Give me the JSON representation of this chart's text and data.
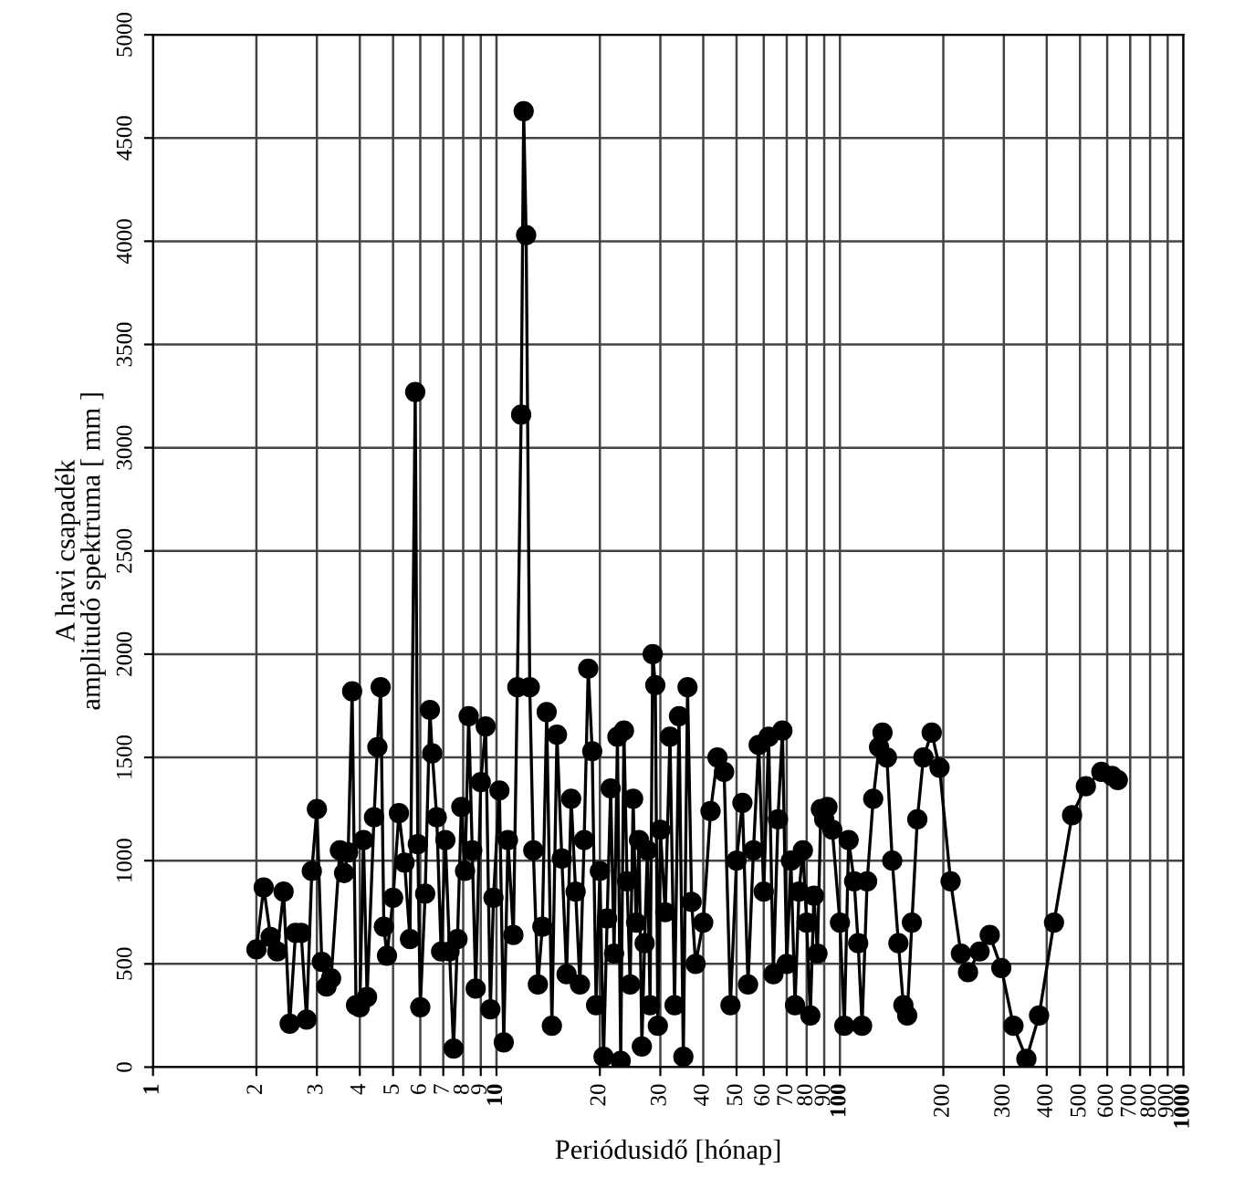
{
  "chart_data": {
    "type": "line",
    "xlabel": "Periódusidő [hónap]",
    "ylabel": "A havi csapadék\namplitudó spektruma [ mm ]",
    "log": "x",
    "grid": true,
    "marker": "circle",
    "line_style": "solid",
    "xlim": [
      1,
      1000
    ],
    "ylim": [
      0,
      5000
    ],
    "xticks": [
      1,
      2,
      3,
      4,
      5,
      6,
      7,
      8,
      9,
      10,
      20,
      30,
      40,
      50,
      60,
      70,
      80,
      90,
      100,
      200,
      300,
      400,
      500,
      600,
      700,
      800,
      900,
      1000
    ],
    "yticks": [
      0,
      500,
      1000,
      1500,
      2000,
      2500,
      3000,
      3500,
      4000,
      4500,
      5000
    ],
    "series": [
      {
        "color": "#000000",
        "x": [
          2.0,
          2.1,
          2.2,
          2.3,
          2.4,
          2.5,
          2.6,
          2.7,
          2.8,
          2.9,
          3.0,
          3.1,
          3.2,
          3.3,
          3.5,
          3.6,
          3.7,
          3.8,
          3.9,
          4.0,
          4.1,
          4.2,
          4.4,
          4.5,
          4.6,
          4.7,
          4.8,
          5.0,
          5.2,
          5.4,
          5.6,
          5.8,
          5.9,
          6.0,
          6.2,
          6.4,
          6.5,
          6.7,
          6.9,
          7.1,
          7.3,
          7.5,
          7.7,
          7.9,
          8.1,
          8.3,
          8.5,
          8.7,
          9.0,
          9.3,
          9.6,
          9.8,
          10.2,
          10.5,
          10.8,
          11.2,
          11.5,
          11.8,
          12.0,
          12.2,
          12.5,
          12.8,
          13.2,
          13.6,
          14,
          14.5,
          15,
          15.5,
          16,
          16.5,
          17,
          17.5,
          18,
          18.5,
          19,
          19.5,
          20,
          20.5,
          21,
          21.5,
          22,
          22.5,
          23,
          23.5,
          24,
          24.5,
          25,
          25.5,
          26,
          26.5,
          27,
          27.5,
          28,
          28.5,
          29,
          29.5,
          30,
          31,
          32,
          33,
          34,
          35,
          36,
          37,
          38,
          40,
          42,
          44,
          46,
          48,
          50,
          52,
          54,
          56,
          58,
          60,
          62,
          64,
          66,
          68,
          70,
          72,
          74,
          76,
          78,
          80,
          82,
          84,
          86,
          88,
          90,
          92,
          95,
          100,
          103,
          106,
          110,
          113,
          116,
          120,
          125,
          130,
          133,
          137,
          142,
          148,
          153,
          157,
          162,
          168,
          175,
          185,
          195,
          210,
          225,
          236,
          255,
          273,
          295,
          320,
          349,
          380,
          420,
          474,
          520,
          577,
          620,
          644
        ],
        "values": [
          570,
          870,
          630,
          560,
          850,
          210,
          650,
          650,
          230,
          950,
          1250,
          510,
          390,
          430,
          1050,
          940,
          1040,
          1820,
          300,
          290,
          1100,
          340,
          1210,
          1550,
          1840,
          680,
          540,
          820,
          1230,
          990,
          620,
          3270,
          1080,
          290,
          840,
          1730,
          1520,
          1210,
          560,
          1100,
          560,
          90,
          620,
          1260,
          950,
          1700,
          1050,
          380,
          1380,
          1650,
          280,
          820,
          1340,
          120,
          1100,
          640,
          1840,
          3160,
          4630,
          4030,
          1840,
          1050,
          400,
          680,
          1720,
          200,
          1610,
          1010,
          450,
          1300,
          850,
          400,
          1100,
          1930,
          1530,
          300,
          950,
          50,
          720,
          1350,
          550,
          1600,
          30,
          1630,
          900,
          400,
          1300,
          700,
          1100,
          100,
          600,
          1050,
          300,
          2000,
          1850,
          200,
          1150,
          750,
          1600,
          300,
          1700,
          50,
          1840,
          800,
          500,
          700,
          1240,
          1500,
          1430,
          300,
          1000,
          1280,
          400,
          1050,
          1560,
          850,
          1600,
          450,
          1200,
          1630,
          500,
          1000,
          300,
          850,
          1050,
          700,
          250,
          830,
          550,
          1250,
          1200,
          1260,
          1150,
          700,
          200,
          1100,
          900,
          600,
          200,
          900,
          1300,
          1550,
          1620,
          1500,
          1000,
          600,
          300,
          250,
          700,
          1200,
          1500,
          1620,
          1450,
          900,
          550,
          460,
          560,
          640,
          480,
          200,
          40,
          250,
          700,
          1220,
          1360,
          1430,
          1410,
          1390
        ]
      }
    ]
  }
}
